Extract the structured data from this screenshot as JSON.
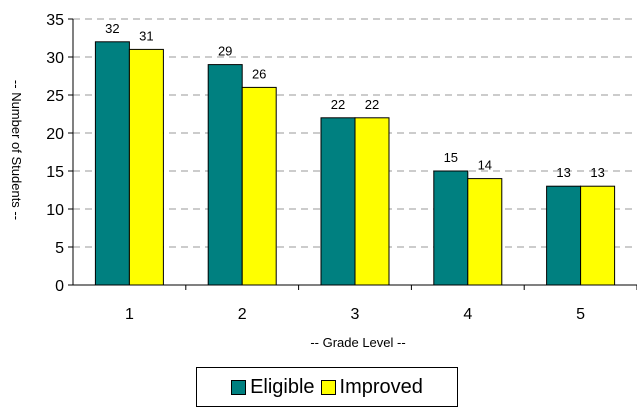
{
  "chart_data": {
    "type": "bar",
    "title": "",
    "xlabel": "-- Grade Level --",
    "ylabel": "-- Number of Students --",
    "categories": [
      "1",
      "2",
      "3",
      "4",
      "5"
    ],
    "series": [
      {
        "name": "Eligible",
        "values": [
          32,
          29,
          22,
          15,
          13
        ],
        "color": "#008080"
      },
      {
        "name": "Improved",
        "values": [
          31,
          26,
          22,
          14,
          13
        ],
        "color": "#ffff00"
      }
    ],
    "ylim": [
      0,
      35
    ],
    "yticks": [
      "0",
      "5",
      "10",
      "15",
      "20",
      "25",
      "30",
      "35"
    ],
    "grid": "horizontal dashed",
    "legend": "bottom",
    "data_labels": true
  }
}
